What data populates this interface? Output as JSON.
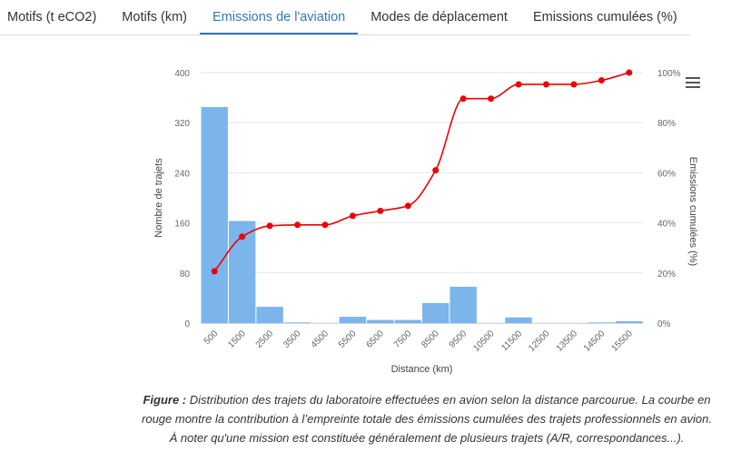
{
  "tabs": [
    {
      "label": "Motifs (t eCO2)"
    },
    {
      "label": "Motifs (km)"
    },
    {
      "label": "Emissions de l'aviation",
      "active": true
    },
    {
      "label": "Modes de déplacement"
    },
    {
      "label": "Emissions cumulées (%)"
    }
  ],
  "chart_data": {
    "type": "bar",
    "categories": [
      "500",
      "1500",
      "2500",
      "3500",
      "4500",
      "5500",
      "6500",
      "7500",
      "8500",
      "9500",
      "10500",
      "11500",
      "12500",
      "13500",
      "14500",
      "15500"
    ],
    "xlabel": "Distance (km)",
    "ylabel": "Nombre de trajets",
    "y2label": "Emissions cumulées (%)",
    "ylim": [
      0,
      400
    ],
    "yticks": [
      "0",
      "80",
      "160",
      "240",
      "320",
      "400"
    ],
    "y2lim": [
      0,
      100
    ],
    "y2ticks": [
      "0%",
      "20%",
      "40%",
      "60%",
      "80%",
      "100%"
    ],
    "series": [
      {
        "type": "bar",
        "color": "#7cb5ec",
        "values": [
          345,
          163,
          26,
          1,
          0,
          10,
          5,
          5,
          32,
          58,
          0,
          9,
          0,
          0,
          1,
          3
        ]
      },
      {
        "type": "line",
        "axis": "right",
        "color": "#ee0000",
        "values": [
          20.7,
          34.5,
          38.8,
          39.2,
          39.2,
          42.8,
          44.8,
          46.8,
          61.0,
          89.6,
          89.6,
          95.3,
          95.3,
          95.3,
          96.9,
          100
        ]
      }
    ],
    "grid": true
  },
  "caption": {
    "figure_label": "Figure :",
    "text": " Distribution des trajets du laboratoire effectuées en avion selon la distance parcourue. La courbe en rouge montre la contribution à l’empreinte totale des émissions cumulées des trajets professionnels en avion. À noter qu'une mission est constituée généralement de plusieurs trajets (A/R, correspondances...)."
  },
  "icons": {
    "menu": "hamburger-menu-icon"
  }
}
